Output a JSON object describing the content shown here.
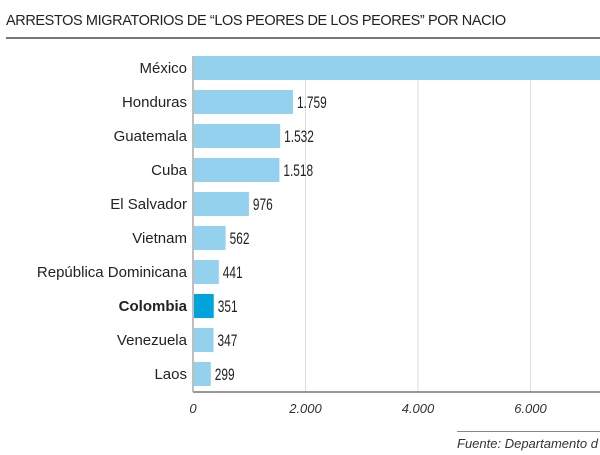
{
  "title": "ARRESTOS MIGRATORIOS DE  “LOS PEORES DE LOS PEORES” POR NACIO",
  "source": "Fuente: Departamento d",
  "colors": {
    "bar": "#93d1ee",
    "highlight": "#00a3da",
    "grid": "#dddddd",
    "axis": "#777777"
  },
  "chart_data": {
    "type": "bar",
    "orientation": "horizontal",
    "categories": [
      "México",
      "Honduras",
      "Guatemala",
      "Cuba",
      "El Salvador",
      "Vietnam",
      "República Dominicana",
      "Colombia",
      "Venezuela",
      "Laos"
    ],
    "values": [
      null,
      1759,
      1532,
      1518,
      976,
      562,
      441,
      351,
      347,
      299
    ],
    "value_labels": [
      "",
      "1.759",
      "1.532",
      "1.518",
      "976",
      "562",
      "441",
      "351",
      "347",
      "299"
    ],
    "highlight": "Colombia",
    "xticks": [
      0,
      2000,
      4000,
      6000
    ],
    "xtick_labels": [
      "0",
      "2.000",
      "4.000",
      "6.000"
    ],
    "xlim": [
      0,
      7300
    ],
    "grid": true
  }
}
